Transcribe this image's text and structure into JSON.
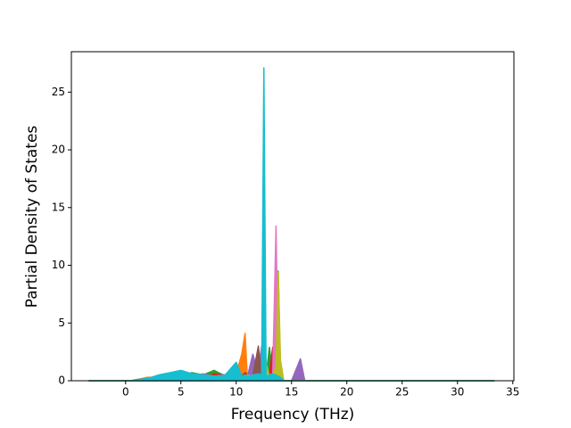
{
  "chart_data": {
    "type": "area",
    "xlabel": "Frequency (THz)",
    "ylabel": "Partial Density of States",
    "x": [
      -3.3,
      0.5,
      1,
      2,
      3,
      4,
      5,
      6,
      7,
      8,
      9,
      10,
      10.5,
      10.8,
      11,
      11.5,
      12,
      12.3,
      12.5,
      12.7,
      13,
      13.3,
      13.6,
      13.8,
      14,
      14.3,
      15,
      15.8,
      16.2,
      17,
      33.3
    ],
    "series": [
      {
        "color": "#1f77b4",
        "values": [
          0,
          0,
          0.1,
          0.2,
          0.4,
          0.6,
          0.8,
          0.5,
          0.3,
          0.4,
          0.3,
          0.5,
          0.2,
          0.8,
          0.3,
          0.5,
          0.6,
          0.4,
          11,
          0.3,
          0.4,
          0.2,
          0.5,
          0.3,
          0.2,
          0,
          0,
          0,
          0,
          0,
          0
        ]
      },
      {
        "color": "#ff7f0e",
        "values": [
          0,
          0,
          0.1,
          0.3,
          0.3,
          0.5,
          0.7,
          0.6,
          0.4,
          0.3,
          0.5,
          0.6,
          2.3,
          4.1,
          0.4,
          0.6,
          0.3,
          0.5,
          1.2,
          0.3,
          0.4,
          0.6,
          0.5,
          0.4,
          0.2,
          0,
          0,
          0,
          0,
          0,
          0
        ]
      },
      {
        "color": "#2ca02c",
        "values": [
          0,
          0,
          0.05,
          0.2,
          0.3,
          0.4,
          0.5,
          0.7,
          0.5,
          0.9,
          0.4,
          0.3,
          0.5,
          0.6,
          0.3,
          0.4,
          0.5,
          0.6,
          0.8,
          0.4,
          2.9,
          0.5,
          1.0,
          9.5,
          0.6,
          0,
          0,
          0,
          0,
          0,
          0
        ]
      },
      {
        "color": "#d62728",
        "values": [
          0,
          0,
          0.1,
          0.2,
          0.4,
          0.5,
          0.6,
          0.5,
          0.3,
          0.6,
          0.5,
          0.4,
          0.3,
          0.7,
          0.5,
          0.4,
          1.0,
          0.5,
          0.6,
          0.4,
          0.6,
          2.9,
          0.8,
          1.2,
          0.3,
          0,
          0,
          0,
          0,
          0,
          0
        ]
      },
      {
        "color": "#9467bd",
        "values": [
          0,
          0,
          0,
          0.1,
          0.2,
          0.3,
          0.4,
          0.3,
          0.6,
          0.4,
          0.3,
          0.5,
          0.3,
          0.4,
          0.3,
          2.3,
          0.6,
          3.0,
          0.5,
          0.4,
          0.5,
          0.6,
          0.7,
          0.5,
          0.3,
          0,
          0,
          1.9,
          0,
          0,
          0
        ]
      },
      {
        "color": "#8c564b",
        "values": [
          0,
          0,
          0,
          0.1,
          0.2,
          0.3,
          0.3,
          0.4,
          0.3,
          0.3,
          0.4,
          0.3,
          0.4,
          0.5,
          0.3,
          0.4,
          3.0,
          0.4,
          0.5,
          0.3,
          0.4,
          0.5,
          0.4,
          0.3,
          0.2,
          0,
          0,
          0,
          0,
          0,
          0
        ]
      },
      {
        "color": "#e377c2",
        "values": [
          0,
          0,
          0,
          0.1,
          0.2,
          0.3,
          0.4,
          0.3,
          0.5,
          0.4,
          0.3,
          0.4,
          0.3,
          0.5,
          0.4,
          0.5,
          0.4,
          0.5,
          0.6,
          0.4,
          0.5,
          0.6,
          13.4,
          0.8,
          0.3,
          0,
          0,
          0,
          0,
          0,
          0
        ]
      },
      {
        "color": "#7f7f7f",
        "values": [
          0,
          0,
          0,
          0.1,
          0.2,
          0.2,
          0.3,
          0.3,
          0.4,
          0.3,
          0.4,
          0.3,
          0.4,
          0.3,
          0.4,
          0.3,
          0.4,
          0.5,
          0.6,
          0.3,
          0.4,
          0.5,
          0.6,
          0.4,
          0.2,
          0,
          0,
          0,
          0,
          0,
          0
        ]
      },
      {
        "color": "#bcbd22",
        "values": [
          0,
          0,
          0,
          0.1,
          0.2,
          0.3,
          0.4,
          0.5,
          0.4,
          0.3,
          0.4,
          0.5,
          0.4,
          0.3,
          0.5,
          0.4,
          0.3,
          0.6,
          0.5,
          1.5,
          0.4,
          0.5,
          1.2,
          9.4,
          1.8,
          0,
          0,
          0,
          0,
          0,
          0
        ]
      },
      {
        "color": "#17becf",
        "values": [
          0,
          0,
          0.1,
          0.2,
          0.5,
          0.7,
          0.9,
          0.6,
          0.5,
          0.4,
          0.5,
          1.6,
          0.4,
          0.5,
          0.4,
          0.5,
          0.6,
          0.5,
          27.1,
          0.4,
          0.5,
          0.6,
          0.5,
          0.4,
          0.3,
          0,
          0,
          0,
          0,
          0,
          0
        ]
      }
    ],
    "xlim": [
      -4.9,
      35.1
    ],
    "xticks": [
      0,
      5,
      10,
      15,
      20,
      25,
      30,
      35
    ],
    "ylim": [
      0,
      28.5
    ],
    "yticks": [
      0,
      5,
      10,
      15,
      20,
      25
    ]
  }
}
